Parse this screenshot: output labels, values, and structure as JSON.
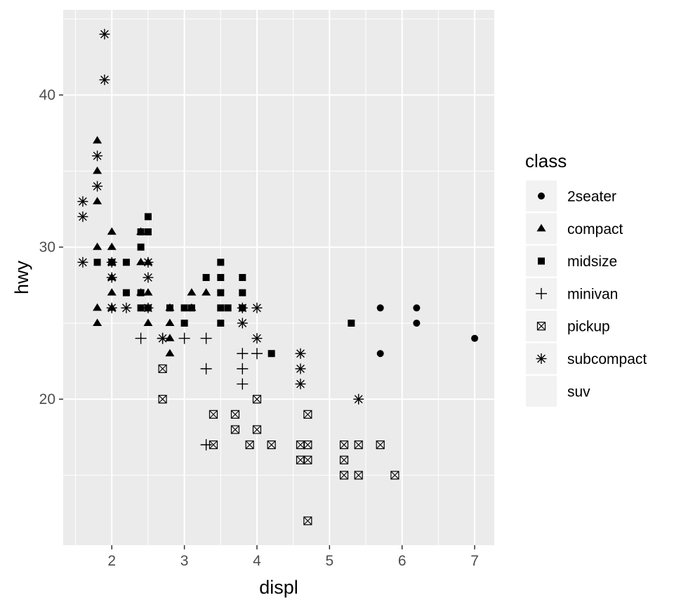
{
  "chart_data": {
    "type": "scatter",
    "xlabel": "displ",
    "ylabel": "hwy",
    "xlim": [
      1.33,
      7.27
    ],
    "ylim": [
      10.4,
      45.6
    ],
    "x_ticks": [
      2,
      3,
      4,
      5,
      6,
      7
    ],
    "x_tick_labels": [
      "2",
      "3",
      "4",
      "5",
      "6",
      "7"
    ],
    "y_ticks": [
      20,
      30,
      40
    ],
    "y_tick_labels": [
      "20",
      "30",
      "40"
    ],
    "grid": true,
    "panel_background": "#ebebeb",
    "grid_color": "#ffffff",
    "mark_color": "#000000",
    "legend": {
      "title": "class",
      "position": "right",
      "key_background": "#f2f2f2",
      "entries": [
        {
          "label": "2seater",
          "shape": "circle"
        },
        {
          "label": "compact",
          "shape": "triangle"
        },
        {
          "label": "midsize",
          "shape": "square"
        },
        {
          "label": "minivan",
          "shape": "plus"
        },
        {
          "label": "pickup",
          "shape": "boxed-x"
        },
        {
          "label": "subcompact",
          "shape": "asterisk"
        },
        {
          "label": "suv",
          "shape": "none"
        }
      ]
    },
    "series": [
      {
        "name": "2seater",
        "shape": "circle",
        "points": [
          [
            5.7,
            26
          ],
          [
            5.7,
            23
          ],
          [
            6.2,
            26
          ],
          [
            6.2,
            25
          ],
          [
            7.0,
            24
          ]
        ]
      },
      {
        "name": "compact",
        "shape": "triangle",
        "points": [
          [
            1.8,
            37
          ],
          [
            1.8,
            35
          ],
          [
            1.8,
            33
          ],
          [
            1.8,
            30
          ],
          [
            1.8,
            26
          ],
          [
            1.8,
            25
          ],
          [
            2.0,
            31
          ],
          [
            2.0,
            30
          ],
          [
            2.0,
            29
          ],
          [
            2.0,
            28
          ],
          [
            2.0,
            27
          ],
          [
            2.0,
            26
          ],
          [
            2.4,
            31
          ],
          [
            2.4,
            29
          ],
          [
            2.4,
            27
          ],
          [
            2.5,
            29
          ],
          [
            2.5,
            27
          ],
          [
            2.5,
            25
          ],
          [
            2.8,
            26
          ],
          [
            2.8,
            25
          ],
          [
            2.8,
            24
          ],
          [
            2.8,
            23
          ],
          [
            3.1,
            27
          ],
          [
            3.1,
            26
          ],
          [
            3.3,
            27
          ]
        ]
      },
      {
        "name": "midsize",
        "shape": "square",
        "points": [
          [
            1.8,
            29
          ],
          [
            2.0,
            29
          ],
          [
            2.2,
            29
          ],
          [
            2.2,
            27
          ],
          [
            2.4,
            31
          ],
          [
            2.4,
            30
          ],
          [
            2.4,
            27
          ],
          [
            2.4,
            26
          ],
          [
            2.5,
            32
          ],
          [
            2.5,
            31
          ],
          [
            2.5,
            26
          ],
          [
            2.8,
            26
          ],
          [
            3.0,
            26
          ],
          [
            3.0,
            25
          ],
          [
            3.1,
            26
          ],
          [
            3.3,
            28
          ],
          [
            3.5,
            29
          ],
          [
            3.5,
            28
          ],
          [
            3.5,
            27
          ],
          [
            3.5,
            26
          ],
          [
            3.5,
            25
          ],
          [
            3.6,
            26
          ],
          [
            3.8,
            28
          ],
          [
            3.8,
            27
          ],
          [
            3.8,
            26
          ],
          [
            4.2,
            23
          ],
          [
            5.3,
            25
          ]
        ]
      },
      {
        "name": "minivan",
        "shape": "plus",
        "points": [
          [
            2.4,
            24
          ],
          [
            2.7,
            24
          ],
          [
            3.0,
            24
          ],
          [
            3.3,
            24
          ],
          [
            3.3,
            22
          ],
          [
            3.3,
            17
          ],
          [
            3.8,
            23
          ],
          [
            3.8,
            22
          ],
          [
            3.8,
            21
          ],
          [
            4.0,
            23
          ]
        ]
      },
      {
        "name": "pickup",
        "shape": "boxed-x",
        "points": [
          [
            2.7,
            22
          ],
          [
            2.7,
            20
          ],
          [
            3.4,
            19
          ],
          [
            3.4,
            17
          ],
          [
            3.7,
            19
          ],
          [
            3.7,
            18
          ],
          [
            3.9,
            17
          ],
          [
            4.0,
            20
          ],
          [
            4.0,
            18
          ],
          [
            4.2,
            17
          ],
          [
            4.6,
            17
          ],
          [
            4.6,
            16
          ],
          [
            4.7,
            19
          ],
          [
            4.7,
            17
          ],
          [
            4.7,
            16
          ],
          [
            4.7,
            12
          ],
          [
            5.2,
            17
          ],
          [
            5.2,
            16
          ],
          [
            5.2,
            15
          ],
          [
            5.4,
            17
          ],
          [
            5.4,
            15
          ],
          [
            5.7,
            17
          ],
          [
            5.9,
            15
          ]
        ]
      },
      {
        "name": "subcompact",
        "shape": "asterisk",
        "points": [
          [
            1.6,
            33
          ],
          [
            1.6,
            32
          ],
          [
            1.6,
            29
          ],
          [
            1.8,
            36
          ],
          [
            1.8,
            34
          ],
          [
            1.9,
            44
          ],
          [
            1.9,
            41
          ],
          [
            2.0,
            29
          ],
          [
            2.0,
            28
          ],
          [
            2.0,
            26
          ],
          [
            2.2,
            26
          ],
          [
            2.5,
            29
          ],
          [
            2.5,
            28
          ],
          [
            2.5,
            26
          ],
          [
            2.7,
            24
          ],
          [
            3.8,
            26
          ],
          [
            3.8,
            25
          ],
          [
            4.0,
            26
          ],
          [
            4.0,
            24
          ],
          [
            4.6,
            23
          ],
          [
            4.6,
            22
          ],
          [
            4.6,
            21
          ],
          [
            5.4,
            20
          ]
        ]
      }
    ]
  }
}
